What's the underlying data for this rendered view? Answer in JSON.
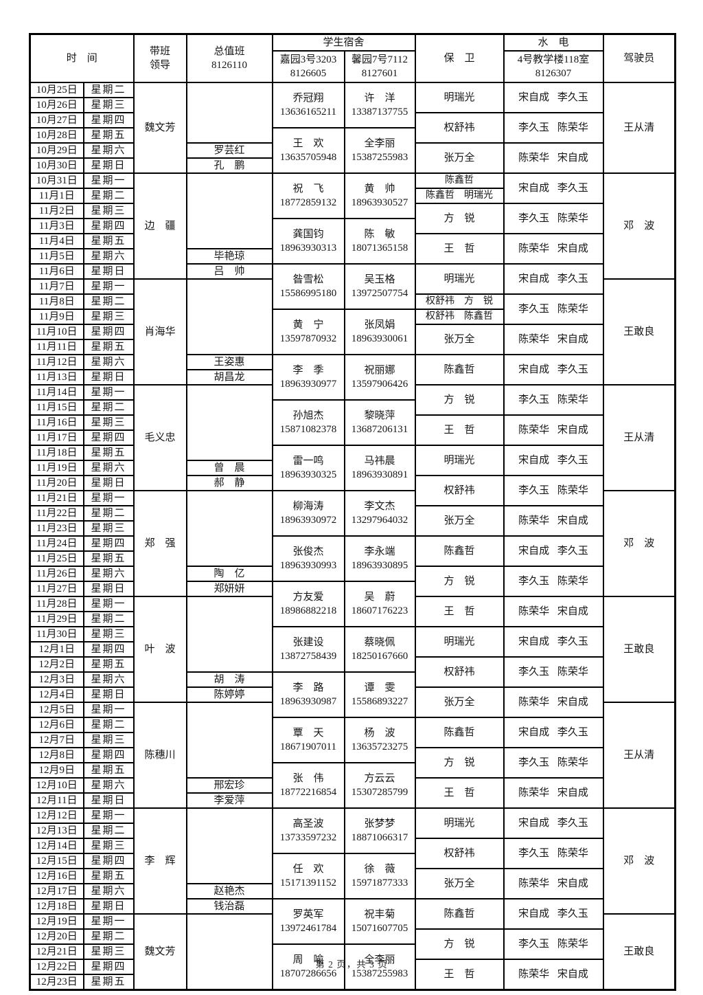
{
  "page": {
    "footer": "第 2 页，共 3 页"
  },
  "header": {
    "time": "时　间",
    "leader_line1": "带班",
    "leader_line2": "领导",
    "duty_line1": "总值班",
    "duty_line2": "8126110",
    "dorm_group": "学生宿舍",
    "dorm1_line1": "嘉园3号3203",
    "dorm1_line2": "8126605",
    "dorm2_line1": "馨园7号7112",
    "dorm2_line2": "8127601",
    "security": "保　卫",
    "utility_group": "水　电",
    "utility_line1": "4号教学楼118室",
    "utility_line2": "8126307",
    "driver": "驾驶员"
  },
  "rows": [
    {
      "date": "10月25日",
      "weekday": "星期二"
    },
    {
      "date": "10月26日",
      "weekday": "星期三"
    },
    {
      "date": "10月27日",
      "weekday": "星期四"
    },
    {
      "date": "10月28日",
      "weekday": "星期五"
    },
    {
      "date": "10月29日",
      "weekday": "星期六"
    },
    {
      "date": "10月30日",
      "weekday": "星期日"
    },
    {
      "date": "10月31日",
      "weekday": "星期一"
    },
    {
      "date": "11月1日",
      "weekday": "星期二"
    },
    {
      "date": "11月2日",
      "weekday": "星期三"
    },
    {
      "date": "11月3日",
      "weekday": "星期四"
    },
    {
      "date": "11月4日",
      "weekday": "星期五"
    },
    {
      "date": "11月5日",
      "weekday": "星期六"
    },
    {
      "date": "11月6日",
      "weekday": "星期日"
    },
    {
      "date": "11月7日",
      "weekday": "星期一"
    },
    {
      "date": "11月8日",
      "weekday": "星期二"
    },
    {
      "date": "11月9日",
      "weekday": "星期三"
    },
    {
      "date": "11月10日",
      "weekday": "星期四"
    },
    {
      "date": "11月11日",
      "weekday": "星期五"
    },
    {
      "date": "11月12日",
      "weekday": "星期六"
    },
    {
      "date": "11月13日",
      "weekday": "星期日"
    },
    {
      "date": "11月14日",
      "weekday": "星期一"
    },
    {
      "date": "11月15日",
      "weekday": "星期二"
    },
    {
      "date": "11月16日",
      "weekday": "星期三"
    },
    {
      "date": "11月17日",
      "weekday": "星期四"
    },
    {
      "date": "11月18日",
      "weekday": "星期五"
    },
    {
      "date": "11月19日",
      "weekday": "星期六"
    },
    {
      "date": "11月20日",
      "weekday": "星期日"
    },
    {
      "date": "11月21日",
      "weekday": "星期一"
    },
    {
      "date": "11月22日",
      "weekday": "星期二"
    },
    {
      "date": "11月23日",
      "weekday": "星期三"
    },
    {
      "date": "11月24日",
      "weekday": "星期四"
    },
    {
      "date": "11月25日",
      "weekday": "星期五"
    },
    {
      "date": "11月26日",
      "weekday": "星期六"
    },
    {
      "date": "11月27日",
      "weekday": "星期日"
    },
    {
      "date": "11月28日",
      "weekday": "星期一"
    },
    {
      "date": "11月29日",
      "weekday": "星期二"
    },
    {
      "date": "11月30日",
      "weekday": "星期三"
    },
    {
      "date": "12月1日",
      "weekday": "星期四"
    },
    {
      "date": "12月2日",
      "weekday": "星期五"
    },
    {
      "date": "12月3日",
      "weekday": "星期六"
    },
    {
      "date": "12月4日",
      "weekday": "星期日"
    },
    {
      "date": "12月5日",
      "weekday": "星期一"
    },
    {
      "date": "12月6日",
      "weekday": "星期二"
    },
    {
      "date": "12月7日",
      "weekday": "星期三"
    },
    {
      "date": "12月8日",
      "weekday": "星期四"
    },
    {
      "date": "12月9日",
      "weekday": "星期五"
    },
    {
      "date": "12月10日",
      "weekday": "星期六"
    },
    {
      "date": "12月11日",
      "weekday": "星期日"
    },
    {
      "date": "12月12日",
      "weekday": "星期一"
    },
    {
      "date": "12月13日",
      "weekday": "星期二"
    },
    {
      "date": "12月14日",
      "weekday": "星期三"
    },
    {
      "date": "12月15日",
      "weekday": "星期四"
    },
    {
      "date": "12月16日",
      "weekday": "星期五"
    },
    {
      "date": "12月17日",
      "weekday": "星期六"
    },
    {
      "date": "12月18日",
      "weekday": "星期日"
    },
    {
      "date": "12月19日",
      "weekday": "星期一"
    },
    {
      "date": "12月20日",
      "weekday": "星期二"
    },
    {
      "date": "12月21日",
      "weekday": "星期三"
    },
    {
      "date": "12月22日",
      "weekday": "星期四"
    },
    {
      "date": "12月23日",
      "weekday": "星期五"
    }
  ],
  "leader_cells": [
    {
      "start": 0,
      "span": 6,
      "text": "魏文芳"
    },
    {
      "start": 6,
      "span": 7,
      "text": "边　疆"
    },
    {
      "start": 13,
      "span": 7,
      "text": "肖海华"
    },
    {
      "start": 20,
      "span": 7,
      "text": "毛义忠"
    },
    {
      "start": 27,
      "span": 7,
      "text": "郑　强"
    },
    {
      "start": 34,
      "span": 7,
      "text": "叶　波"
    },
    {
      "start": 41,
      "span": 7,
      "text": "陈穗川"
    },
    {
      "start": 48,
      "span": 7,
      "text": "李　辉"
    },
    {
      "start": 55,
      "span": 5,
      "text": "魏文芳"
    }
  ],
  "duty_cells": [
    {
      "start": 0,
      "span": 4,
      "text": ""
    },
    {
      "start": 4,
      "span": 1,
      "text": "罗芸红"
    },
    {
      "start": 5,
      "span": 1,
      "text": "孔　鹏"
    },
    {
      "start": 6,
      "span": 5,
      "text": ""
    },
    {
      "start": 11,
      "span": 1,
      "text": "毕艳琼"
    },
    {
      "start": 12,
      "span": 1,
      "text": "吕　帅"
    },
    {
      "start": 13,
      "span": 5,
      "text": ""
    },
    {
      "start": 18,
      "span": 1,
      "text": "王姿惠"
    },
    {
      "start": 19,
      "span": 1,
      "text": "胡昌龙"
    },
    {
      "start": 20,
      "span": 5,
      "text": ""
    },
    {
      "start": 25,
      "span": 1,
      "text": "曾　晨"
    },
    {
      "start": 26,
      "span": 1,
      "text": "郝　静"
    },
    {
      "start": 27,
      "span": 5,
      "text": ""
    },
    {
      "start": 32,
      "span": 1,
      "text": "陶　亿"
    },
    {
      "start": 33,
      "span": 1,
      "text": "郑妍妍"
    },
    {
      "start": 34,
      "span": 5,
      "text": ""
    },
    {
      "start": 39,
      "span": 1,
      "text": "胡　涛"
    },
    {
      "start": 40,
      "span": 1,
      "text": "陈婷婷"
    },
    {
      "start": 41,
      "span": 5,
      "text": ""
    },
    {
      "start": 46,
      "span": 1,
      "text": "邢宏珍"
    },
    {
      "start": 47,
      "span": 1,
      "text": "李爱萍"
    },
    {
      "start": 48,
      "span": 5,
      "text": ""
    },
    {
      "start": 53,
      "span": 1,
      "text": "赵艳杰"
    },
    {
      "start": 54,
      "span": 1,
      "text": "钱治磊"
    },
    {
      "start": 55,
      "span": 5,
      "text": ""
    }
  ],
  "dorm1_cells": [
    {
      "start": 0,
      "span": 3,
      "name": "乔冠翔",
      "phone": "13636165211"
    },
    {
      "start": 3,
      "span": 3,
      "name": "王　欢",
      "phone": "13635705948"
    },
    {
      "start": 6,
      "span": 3,
      "name": "祝　飞",
      "phone": "18772859132"
    },
    {
      "start": 9,
      "span": 3,
      "name": "龚国钧",
      "phone": "18963930313"
    },
    {
      "start": 12,
      "span": 3,
      "name": "昝雪松",
      "phone": "15586995180"
    },
    {
      "start": 15,
      "span": 3,
      "name": "黄　宁",
      "phone": "13597870932"
    },
    {
      "start": 18,
      "span": 3,
      "name": "李　季",
      "phone": "18963930977"
    },
    {
      "start": 21,
      "span": 3,
      "name": "孙旭杰",
      "phone": "15871082378"
    },
    {
      "start": 24,
      "span": 3,
      "name": "雷一鸣",
      "phone": "18963930325"
    },
    {
      "start": 27,
      "span": 3,
      "name": "柳海涛",
      "phone": "18963930972"
    },
    {
      "start": 30,
      "span": 3,
      "name": "张俊杰",
      "phone": "18963930993"
    },
    {
      "start": 33,
      "span": 3,
      "name": "方友爱",
      "phone": "18986882218"
    },
    {
      "start": 36,
      "span": 3,
      "name": "张建设",
      "phone": "13872758439"
    },
    {
      "start": 39,
      "span": 3,
      "name": "李　路",
      "phone": "18963930987"
    },
    {
      "start": 42,
      "span": 3,
      "name": "覃　天",
      "phone": "18671907011"
    },
    {
      "start": 45,
      "span": 3,
      "name": "张　伟",
      "phone": "18772216854"
    },
    {
      "start": 48,
      "span": 3,
      "name": "高圣波",
      "phone": "13733597232"
    },
    {
      "start": 51,
      "span": 3,
      "name": "任　欢",
      "phone": "15171391152"
    },
    {
      "start": 54,
      "span": 3,
      "name": "罗英军",
      "phone": "13972461784"
    },
    {
      "start": 57,
      "span": 3,
      "name": "周　喻",
      "phone": "18707286656"
    }
  ],
  "dorm2_cells": [
    {
      "start": 0,
      "span": 3,
      "name": "许　洋",
      "phone": "13387137755"
    },
    {
      "start": 3,
      "span": 3,
      "name": "全李丽",
      "phone": "15387255983"
    },
    {
      "start": 6,
      "span": 3,
      "name": "黄　帅",
      "phone": "18963930527"
    },
    {
      "start": 9,
      "span": 3,
      "name": "陈　敏",
      "phone": "18071365158"
    },
    {
      "start": 12,
      "span": 3,
      "name": "吴玉格",
      "phone": "13972507754"
    },
    {
      "start": 15,
      "span": 3,
      "name": "张凤娟",
      "phone": "18963930061"
    },
    {
      "start": 18,
      "span": 3,
      "name": "祝丽娜",
      "phone": "13597906426"
    },
    {
      "start": 21,
      "span": 3,
      "name": "黎晓萍",
      "phone": "13687206131"
    },
    {
      "start": 24,
      "span": 3,
      "name": "马祎晨",
      "phone": "18963930891"
    },
    {
      "start": 27,
      "span": 3,
      "name": "李文杰",
      "phone": "13297964032"
    },
    {
      "start": 30,
      "span": 3,
      "name": "李永端",
      "phone": "18963930895"
    },
    {
      "start": 33,
      "span": 3,
      "name": "吴　蔚",
      "phone": "18607176223"
    },
    {
      "start": 36,
      "span": 3,
      "name": "蔡晓佩",
      "phone": "18250167660"
    },
    {
      "start": 39,
      "span": 3,
      "name": "谭　雯",
      "phone": "15586893227"
    },
    {
      "start": 42,
      "span": 3,
      "name": "杨　波",
      "phone": "13635723275"
    },
    {
      "start": 45,
      "span": 3,
      "name": "方云云",
      "phone": "15307285799"
    },
    {
      "start": 48,
      "span": 3,
      "name": "张梦梦",
      "phone": "18871066317"
    },
    {
      "start": 51,
      "span": 3,
      "name": "徐　薇",
      "phone": "15971877333"
    },
    {
      "start": 54,
      "span": 3,
      "name": "祝丰菊",
      "phone": "15071607705"
    },
    {
      "start": 57,
      "span": 3,
      "name": "全李丽",
      "phone": "15387255983"
    }
  ],
  "security_cells": [
    {
      "start": 0,
      "span": 2,
      "text": "明瑞光"
    },
    {
      "start": 2,
      "span": 2,
      "text": "权舒祎"
    },
    {
      "start": 4,
      "span": 2,
      "text": "张万全"
    },
    {
      "start": 6,
      "span": 1,
      "text": "陈鑫哲"
    },
    {
      "start": 7,
      "span": 1,
      "text": "陈鑫哲　明瑞光"
    },
    {
      "start": 8,
      "span": 2,
      "text": "方　锐"
    },
    {
      "start": 10,
      "span": 2,
      "text": "王　哲"
    },
    {
      "start": 12,
      "span": 2,
      "text": "明瑞光"
    },
    {
      "start": 14,
      "span": 1,
      "text": "权舒祎　方　锐"
    },
    {
      "start": 15,
      "span": 1,
      "text": "权舒祎　陈鑫哲"
    },
    {
      "start": 16,
      "span": 2,
      "text": "张万全"
    },
    {
      "start": 18,
      "span": 2,
      "text": "陈鑫哲"
    },
    {
      "start": 20,
      "span": 2,
      "text": "方　锐"
    },
    {
      "start": 22,
      "span": 2,
      "text": "王　哲"
    },
    {
      "start": 24,
      "span": 2,
      "text": "明瑞光"
    },
    {
      "start": 26,
      "span": 2,
      "text": "权舒祎"
    },
    {
      "start": 28,
      "span": 2,
      "text": "张万全"
    },
    {
      "start": 30,
      "span": 2,
      "text": "陈鑫哲"
    },
    {
      "start": 32,
      "span": 2,
      "text": "方　锐"
    },
    {
      "start": 34,
      "span": 2,
      "text": "王　哲"
    },
    {
      "start": 36,
      "span": 2,
      "text": "明瑞光"
    },
    {
      "start": 38,
      "span": 2,
      "text": "权舒祎"
    },
    {
      "start": 40,
      "span": 2,
      "text": "张万全"
    },
    {
      "start": 42,
      "span": 2,
      "text": "陈鑫哲"
    },
    {
      "start": 44,
      "span": 2,
      "text": "方　锐"
    },
    {
      "start": 46,
      "span": 2,
      "text": "王　哲"
    },
    {
      "start": 48,
      "span": 2,
      "text": "明瑞光"
    },
    {
      "start": 50,
      "span": 2,
      "text": "权舒祎"
    },
    {
      "start": 52,
      "span": 2,
      "text": "张万全"
    },
    {
      "start": 54,
      "span": 2,
      "text": "陈鑫哲"
    },
    {
      "start": 56,
      "span": 2,
      "text": "方　锐"
    },
    {
      "start": 58,
      "span": 2,
      "text": "王　哲"
    }
  ],
  "utility_cells": [
    {
      "start": 0,
      "span": 2,
      "text": "宋自成 李久玉"
    },
    {
      "start": 2,
      "span": 2,
      "text": "李久玉 陈荣华"
    },
    {
      "start": 4,
      "span": 2,
      "text": "陈荣华 宋自成"
    },
    {
      "start": 6,
      "span": 2,
      "text": "宋自成 李久玉"
    },
    {
      "start": 8,
      "span": 2,
      "text": "李久玉 陈荣华"
    },
    {
      "start": 10,
      "span": 2,
      "text": "陈荣华 宋自成"
    },
    {
      "start": 12,
      "span": 2,
      "text": "宋自成 李久玉"
    },
    {
      "start": 14,
      "span": 2,
      "text": "李久玉 陈荣华"
    },
    {
      "start": 16,
      "span": 2,
      "text": "陈荣华 宋自成"
    },
    {
      "start": 18,
      "span": 2,
      "text": "宋自成 李久玉"
    },
    {
      "start": 20,
      "span": 2,
      "text": "李久玉 陈荣华"
    },
    {
      "start": 22,
      "span": 2,
      "text": "陈荣华 宋自成"
    },
    {
      "start": 24,
      "span": 2,
      "text": "宋自成 李久玉"
    },
    {
      "start": 26,
      "span": 2,
      "text": "李久玉 陈荣华"
    },
    {
      "start": 28,
      "span": 2,
      "text": "陈荣华 宋自成"
    },
    {
      "start": 30,
      "span": 2,
      "text": "宋自成 李久玉"
    },
    {
      "start": 32,
      "span": 2,
      "text": "李久玉 陈荣华"
    },
    {
      "start": 34,
      "span": 2,
      "text": "陈荣华 宋自成"
    },
    {
      "start": 36,
      "span": 2,
      "text": "宋自成 李久玉"
    },
    {
      "start": 38,
      "span": 2,
      "text": "李久玉 陈荣华"
    },
    {
      "start": 40,
      "span": 2,
      "text": "陈荣华 宋自成"
    },
    {
      "start": 42,
      "span": 2,
      "text": "宋自成 李久玉"
    },
    {
      "start": 44,
      "span": 2,
      "text": "李久玉 陈荣华"
    },
    {
      "start": 46,
      "span": 2,
      "text": "陈荣华 宋自成"
    },
    {
      "start": 48,
      "span": 2,
      "text": "宋自成 李久玉"
    },
    {
      "start": 50,
      "span": 2,
      "text": "李久玉 陈荣华"
    },
    {
      "start": 52,
      "span": 2,
      "text": "陈荣华 宋自成"
    },
    {
      "start": 54,
      "span": 2,
      "text": "宋自成 李久玉"
    },
    {
      "start": 56,
      "span": 2,
      "text": "李久玉 陈荣华"
    },
    {
      "start": 58,
      "span": 2,
      "text": "陈荣华 宋自成"
    }
  ],
  "driver_cells": [
    {
      "start": 0,
      "span": 6,
      "text": "王从清"
    },
    {
      "start": 6,
      "span": 7,
      "text": "邓　波"
    },
    {
      "start": 13,
      "span": 7,
      "text": "王敢良"
    },
    {
      "start": 20,
      "span": 7,
      "text": "王从清"
    },
    {
      "start": 27,
      "span": 7,
      "text": "邓　波"
    },
    {
      "start": 34,
      "span": 7,
      "text": "王敢良"
    },
    {
      "start": 41,
      "span": 7,
      "text": "王从清"
    },
    {
      "start": 48,
      "span": 7,
      "text": "邓　波"
    },
    {
      "start": 55,
      "span": 5,
      "text": "王敢良"
    }
  ]
}
